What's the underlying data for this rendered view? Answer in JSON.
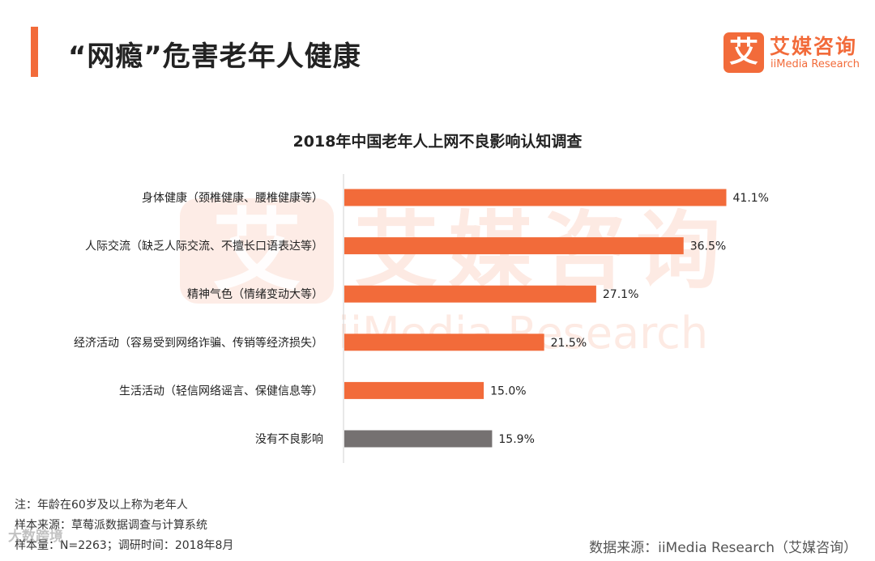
{
  "header": {
    "title": "“网瘾”危害老年人健康",
    "logo_mark": "艾",
    "logo_cn": "艾媒咨询",
    "logo_en": "iiMedia Research"
  },
  "watermark": {
    "mark": "艾",
    "cn": "艾媒咨询",
    "en": "iiMedia Research"
  },
  "colors": {
    "accent": "#f26b3a",
    "bar_primary": "#f26b3a",
    "bar_gray": "#757171"
  },
  "chart_data": {
    "type": "bar",
    "orientation": "horizontal",
    "title": "2018年中国老年人上网不良影响认知调查",
    "xlabel": "",
    "ylabel": "",
    "xlim": [
      0,
      100
    ],
    "unit": "%",
    "categories": [
      "身体健康（颈椎健康、腰椎健康等）",
      "人际交流（缺乏人际交流、不擅长口语表达等）",
      "精神气色（情绪变动大等）",
      "经济活动（容易受到网络诈骗、传销等经济损失）",
      "生活活动（轻信网络谣言、保健信息等）",
      "没有不良影响"
    ],
    "values": [
      41.1,
      36.5,
      27.1,
      21.5,
      15.0,
      15.9
    ],
    "value_labels": [
      "41.1%",
      "36.5%",
      "27.1%",
      "21.5%",
      "15.0%",
      "15.9%"
    ],
    "bar_colors": [
      "#f26b3a",
      "#f26b3a",
      "#f26b3a",
      "#f26b3a",
      "#f26b3a",
      "#757171"
    ]
  },
  "footer": {
    "note": "注：年龄在60岁及以上称为老年人",
    "sample_source": "样本来源：草莓派数据调查与计算系统",
    "sample_size": "样本量：N=2263；调研时间：2018年8月",
    "data_source": "数据来源：iiMedia Research（艾媒咨询）",
    "corner_logo": "大数跨境"
  }
}
